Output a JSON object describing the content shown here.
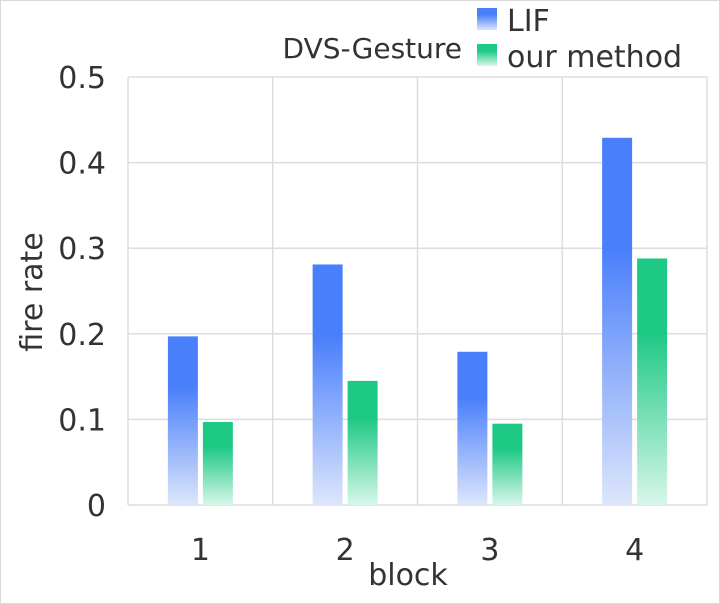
{
  "chart_data": {
    "type": "bar",
    "title": "DVS-Gesture",
    "xlabel": "block",
    "ylabel": "fire rate",
    "categories": [
      "1",
      "2",
      "3",
      "4"
    ],
    "ylim": [
      0,
      0.5
    ],
    "yticks": [
      "0",
      "0.1",
      "0.2",
      "0.3",
      "0.4",
      "0.5"
    ],
    "series": [
      {
        "name": "LIF",
        "values": [
          0.197,
          0.281,
          0.179,
          0.429
        ],
        "color_top": "#4a7ffb",
        "color_bottom": "#dde6fb"
      },
      {
        "name": "our method",
        "values": [
          0.097,
          0.145,
          0.095,
          0.288
        ],
        "color_top": "#1ec885",
        "color_bottom": "#d8f7ea"
      }
    ],
    "grid": true,
    "legend_position": "top-right"
  }
}
